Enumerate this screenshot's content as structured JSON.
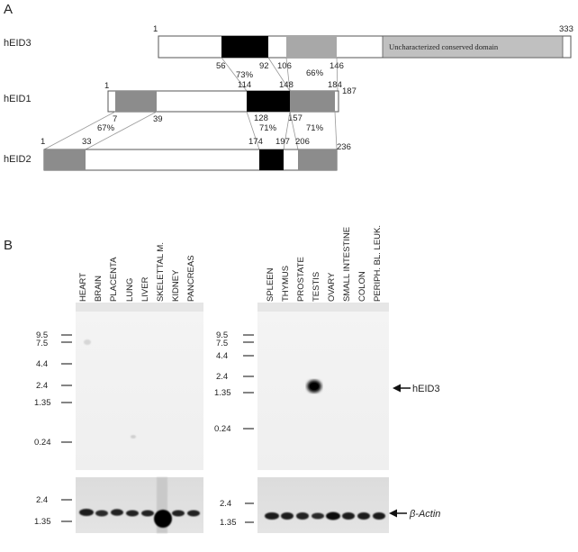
{
  "panel_a": {
    "label": "A",
    "proteins": [
      {
        "name": "hEID3",
        "start": "1",
        "end": "333",
        "domain_label": "Uncharacterized conserved domain",
        "positions": [
          "56",
          "92",
          "106",
          "146"
        ],
        "identities": [
          "73%",
          "66%"
        ]
      },
      {
        "name": "hEID1",
        "start": "1",
        "end": "187",
        "positions_top": [
          "114",
          "148",
          "184"
        ],
        "positions_bottom": [
          "7",
          "39",
          "128",
          "157"
        ],
        "identities": [
          "67%",
          "71%",
          "71%"
        ]
      },
      {
        "name": "hEID2",
        "start": "1",
        "end": "236",
        "positions": [
          "33",
          "174",
          "197",
          "206"
        ]
      }
    ]
  },
  "panel_b": {
    "label": "B",
    "blot_left": {
      "lanes": [
        "HEART",
        "BRAIN",
        "PLACENTA",
        "LUNG",
        "LIVER",
        "SKELETTAL M.",
        "KIDNEY",
        "PANCREAS"
      ],
      "markers": [
        "9.5",
        "7.5",
        "4.4",
        "2.4",
        "1.35",
        "0.24"
      ],
      "actin_markers": [
        "2.4",
        "1.35"
      ]
    },
    "blot_right": {
      "lanes": [
        "SPLEEN",
        "THYMUS",
        "PROSTATE",
        "TESTIS",
        "OVARY",
        "SMALL INTESTINE",
        "COLON",
        "PERIPH. BL. LEUK."
      ],
      "markers": [
        "9.5",
        "7.5",
        "4.4",
        "2.4",
        "1.35",
        "0.24"
      ],
      "actin_markers": [
        "2.4",
        "1.35"
      ],
      "band_label": "hEID3",
      "actin_label": "β-Actin"
    }
  }
}
